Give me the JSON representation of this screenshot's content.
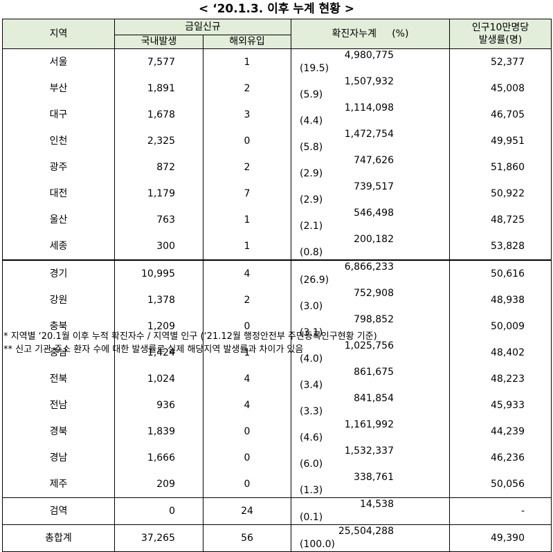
{
  "title": "< ‘20.1.3. 이후 누계 현황 >",
  "headers": {
    "region": "지역",
    "daily_new": "금일신규",
    "domestic": "국내발생",
    "overseas": "해외유입",
    "cumulative": "확진자누계",
    "pct": "(%)",
    "rate_line1": "인구10만명당",
    "rate_line2": "발생률(명)"
  },
  "rows": [
    {
      "region": "서울",
      "domestic": "7,577",
      "overseas": "1",
      "cumulative": "4,980,775",
      "pct": "(19.5)",
      "rate": "52,377"
    },
    {
      "region": "부산",
      "domestic": "1,891",
      "overseas": "2",
      "cumulative": "1,507,932",
      "pct": "(5.9)",
      "rate": "45,008"
    },
    {
      "region": "대구",
      "domestic": "1,678",
      "overseas": "3",
      "cumulative": "1,114,098",
      "pct": "(4.4)",
      "rate": "46,705"
    },
    {
      "region": "인천",
      "domestic": "2,325",
      "overseas": "0",
      "cumulative": "1,472,754",
      "pct": "(5.8)",
      "rate": "49,951"
    },
    {
      "region": "광주",
      "domestic": "872",
      "overseas": "2",
      "cumulative": "747,626",
      "pct": "(2.9)",
      "rate": "51,860"
    },
    {
      "region": "대전",
      "domestic": "1,179",
      "overseas": "7",
      "cumulative": "739,517",
      "pct": "(2.9)",
      "rate": "50,922"
    },
    {
      "region": "울산",
      "domestic": "763",
      "overseas": "1",
      "cumulative": "546,498",
      "pct": "(2.1)",
      "rate": "48,725"
    },
    {
      "region": "세종",
      "domestic": "300",
      "overseas": "1",
      "cumulative": "200,182",
      "pct": "(0.8)",
      "rate": "53,828"
    },
    {
      "region": "경기",
      "domestic": "10,995",
      "overseas": "4",
      "cumulative": "6,866,233",
      "pct": "(26.9)",
      "rate": "50,616"
    },
    {
      "region": "강원",
      "domestic": "1,378",
      "overseas": "2",
      "cumulative": "752,908",
      "pct": "(3.0)",
      "rate": "48,938"
    },
    {
      "region": "충북",
      "domestic": "1,209",
      "overseas": "0",
      "cumulative": "798,852",
      "pct": "(3.1)",
      "rate": "50,009"
    },
    {
      "region": "충남",
      "domestic": "1,424",
      "overseas": "1",
      "cumulative": "1,025,756",
      "pct": "(4.0)",
      "rate": "48,402"
    },
    {
      "region": "전북",
      "domestic": "1,024",
      "overseas": "4",
      "cumulative": "861,675",
      "pct": "(3.4)",
      "rate": "48,223"
    },
    {
      "region": "전남",
      "domestic": "936",
      "overseas": "4",
      "cumulative": "841,854",
      "pct": "(3.3)",
      "rate": "45,933"
    },
    {
      "region": "경북",
      "domestic": "1,839",
      "overseas": "0",
      "cumulative": "1,161,992",
      "pct": "(4.6)",
      "rate": "44,239"
    },
    {
      "region": "경남",
      "domestic": "1,666",
      "overseas": "0",
      "cumulative": "1,532,337",
      "pct": "(6.0)",
      "rate": "46,236"
    },
    {
      "region": "제주",
      "domestic": "209",
      "overseas": "0",
      "cumulative": "338,761",
      "pct": "(1.3)",
      "rate": "50,056"
    },
    {
      "region": "검역",
      "domestic": "0",
      "overseas": "24",
      "cumulative": "14,538",
      "pct": "(0.1)",
      "rate": "-"
    },
    {
      "region": "총합계",
      "domestic": "37,265",
      "overseas": "56",
      "cumulative": "25,504,288",
      "pct": "(100.0)",
      "rate": "49,390"
    }
  ],
  "notes": [
    "* 지역별 ‘20.1월 이후 누적 확진자수 / 지역별 인구 (‘21.12월 행정안전부 주민등록인구현황 기준)",
    "** 신고 기관 주소 환자 수에 대한 발생률로 실제 해당지역 발생률과 차이가 있음"
  ]
}
